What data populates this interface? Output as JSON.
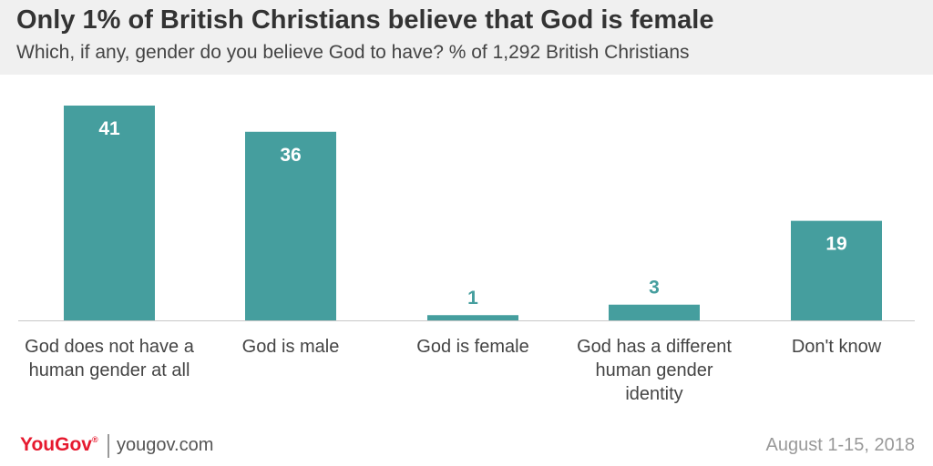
{
  "header": {
    "title": "Only 1% of British Christians believe that God is female",
    "subtitle": "Which, if any, gender do you believe God to have? % of 1,292 British Christians"
  },
  "chart_data": {
    "type": "bar",
    "title": "Only 1% of British Christians believe that God is female",
    "subtitle": "Which, if any, gender do you believe God to have? % of 1,292 British Christians",
    "categories": [
      "God does not have a human gender at all",
      "God is male",
      "God is female",
      "God has a different human gender identity",
      "Don't know"
    ],
    "values": [
      41,
      36,
      1,
      3,
      19
    ],
    "xlabel": "",
    "ylabel": "",
    "ylim": [
      0,
      41
    ],
    "grid": false,
    "bar_color": "#459e9e",
    "value_label_color_inside": "#ffffff",
    "value_label_color_outside": "#459e9e"
  },
  "footer": {
    "brand": "YouGov",
    "brand_mark": "®",
    "site": "yougov.com",
    "date": "August 1-15, 2018",
    "brand_color": "#e6192e"
  }
}
